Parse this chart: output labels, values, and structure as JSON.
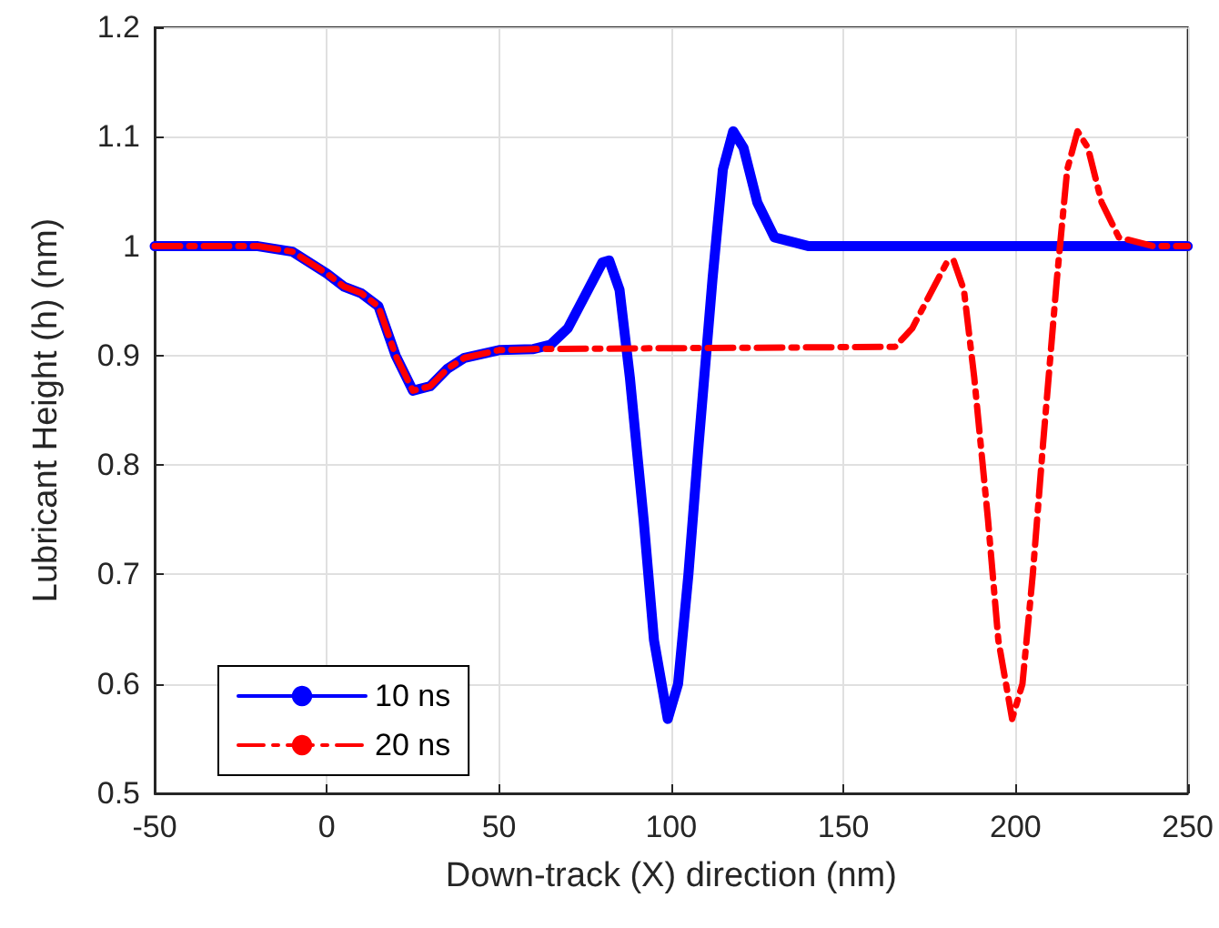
{
  "chart_data": {
    "type": "line",
    "xlabel": "Down-track (X) direction (nm)",
    "ylabel": "Lubricant Height (h) (nm)",
    "xlim": [
      -50,
      250
    ],
    "xticks": [
      -50,
      0,
      50,
      100,
      150,
      200,
      250
    ],
    "ylim": [
      0.5,
      1.2
    ],
    "yticks": [
      0.5,
      0.6,
      0.7,
      0.8,
      0.9,
      1,
      1.1,
      1.2
    ],
    "grid": true,
    "legend": "bottom left",
    "marker": "none",
    "series": [
      {
        "name": "10 ns",
        "color": "#0000ff",
        "line_style": "solid",
        "x": [
          -50,
          -20,
          -10,
          0,
          5,
          10,
          15,
          20,
          25,
          30,
          35,
          40,
          50,
          60,
          65,
          70,
          75,
          80,
          82,
          85,
          88,
          92,
          95,
          99,
          102,
          105,
          108,
          112,
          115,
          118,
          121,
          125,
          130,
          140,
          250
        ],
        "values": [
          1,
          1,
          0.995,
          0.975,
          0.963,
          0.957,
          0.945,
          0.9,
          0.868,
          0.872,
          0.888,
          0.898,
          0.905,
          0.906,
          0.91,
          0.925,
          0.955,
          0.985,
          0.987,
          0.96,
          0.88,
          0.75,
          0.64,
          0.568,
          0.6,
          0.7,
          0.82,
          0.97,
          1.07,
          1.105,
          1.09,
          1.04,
          1.008,
          1,
          1
        ]
      },
      {
        "name": "20 ns",
        "color": "#ff0000",
        "line_style": "dashed",
        "x": [
          -50,
          -20,
          -10,
          0,
          5,
          10,
          15,
          20,
          25,
          30,
          35,
          40,
          50,
          60,
          165,
          170,
          175,
          180,
          182,
          185,
          188,
          192,
          195,
          199,
          202,
          205,
          208,
          212,
          215,
          218,
          221,
          225,
          230,
          240,
          250
        ],
        "values": [
          1,
          1,
          0.995,
          0.975,
          0.963,
          0.957,
          0.945,
          0.9,
          0.868,
          0.872,
          0.888,
          0.898,
          0.905,
          0.906,
          0.908,
          0.925,
          0.955,
          0.985,
          0.987,
          0.96,
          0.88,
          0.75,
          0.64,
          0.568,
          0.6,
          0.7,
          0.82,
          0.97,
          1.07,
          1.105,
          1.09,
          1.04,
          1.008,
          1,
          1
        ]
      }
    ]
  }
}
